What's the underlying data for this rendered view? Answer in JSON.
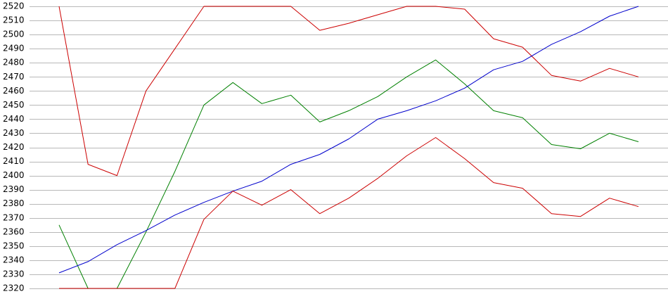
{
  "chart_data": {
    "type": "line",
    "title": "",
    "xlabel": "",
    "ylabel": "",
    "ylim": [
      2320,
      2520
    ],
    "yticks": [
      2320,
      2330,
      2340,
      2350,
      2360,
      2370,
      2380,
      2390,
      2400,
      2410,
      2420,
      2430,
      2440,
      2450,
      2460,
      2470,
      2480,
      2490,
      2500,
      2510,
      2520
    ],
    "grid": true,
    "legend": "none",
    "x": [
      0,
      1,
      2,
      3,
      4,
      5,
      6,
      7,
      8,
      9,
      10,
      11,
      12,
      13,
      14,
      15,
      16,
      17,
      18,
      19,
      20
    ],
    "series": [
      {
        "color": "#cc0000",
        "values": [
          2520,
          2408,
          2400,
          2460,
          2490,
          2520,
          2520,
          2520,
          2520,
          2503,
          2508,
          2514,
          2520,
          2520,
          2518,
          2497,
          2491,
          2471,
          2467,
          2476,
          2470
        ]
      },
      {
        "color": "#008000",
        "values": [
          2365,
          2320,
          2320,
          2360,
          2403,
          2450,
          2466,
          2451,
          2457,
          2438,
          2446,
          2456,
          2470,
          2482,
          2465,
          2446,
          2441,
          2422,
          2419,
          2430,
          2424
        ]
      },
      {
        "color": "#0000cc",
        "values": [
          2331,
          2339,
          2351,
          2361,
          2372,
          2381,
          2389,
          2396,
          2408,
          2415,
          2426,
          2440,
          2446,
          2453,
          2462,
          2475,
          2481,
          2493,
          2502,
          2513,
          2520
        ]
      },
      {
        "color": "#cc0000",
        "values": [
          2320,
          2320,
          2320,
          2320,
          2320,
          2369,
          2389,
          2379,
          2390,
          2373,
          2384,
          2398,
          2414,
          2427,
          2412,
          2395,
          2391,
          2373,
          2371,
          2384,
          2378
        ]
      }
    ]
  }
}
